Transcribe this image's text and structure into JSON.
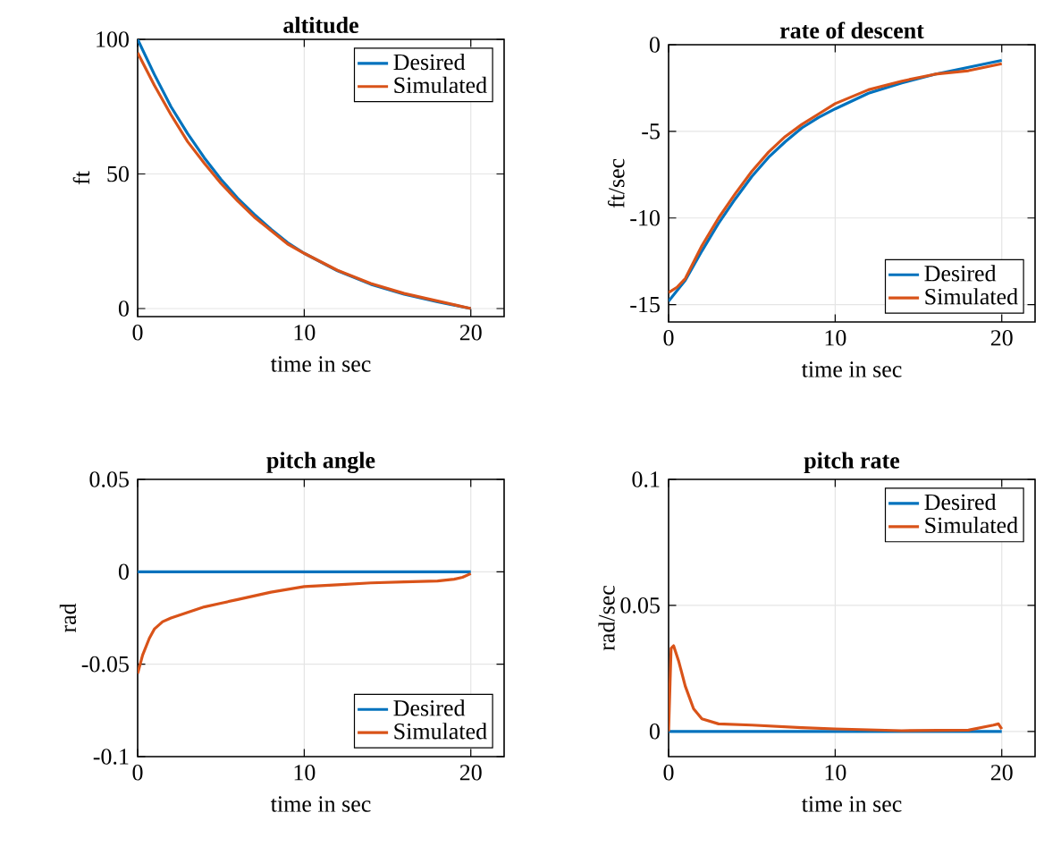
{
  "chart_data": [
    {
      "type": "line",
      "title": "altitude",
      "xlabel": "time in sec",
      "ylabel": "ft",
      "xlim": [
        0,
        22
      ],
      "xticks": [
        0,
        10,
        20
      ],
      "ylim": [
        -3,
        100
      ],
      "yticks": [
        0,
        50,
        100
      ],
      "grid": true,
      "legend": "top right",
      "series": [
        {
          "name": "Desired",
          "color": "#0072bd",
          "x": [
            0,
            1,
            2,
            3,
            4,
            5,
            6,
            7,
            8,
            9,
            10,
            12,
            14,
            16,
            18,
            20
          ],
          "values": [
            100,
            87,
            75,
            65,
            56,
            48,
            41,
            35,
            29.5,
            24.5,
            20.5,
            14,
            9,
            5.3,
            2.5,
            0
          ]
        },
        {
          "name": "Simulated",
          "color": "#d95319",
          "x": [
            0,
            1,
            2,
            3,
            4,
            5,
            6,
            7,
            8,
            9,
            10,
            12,
            14,
            16,
            18,
            20
          ],
          "values": [
            95,
            83,
            72,
            62,
            54,
            46.5,
            40,
            34,
            29,
            24,
            20.5,
            14.2,
            9.3,
            5.6,
            2.8,
            0
          ]
        }
      ]
    },
    {
      "type": "line",
      "title": "rate of descent",
      "xlabel": "time in sec",
      "ylabel": "ft/sec",
      "xlim": [
        0,
        22
      ],
      "xticks": [
        0,
        10,
        20
      ],
      "ylim": [
        -16,
        0
      ],
      "yticks": [
        -15,
        -10,
        -5,
        0
      ],
      "grid": true,
      "legend": "bottom right",
      "series": [
        {
          "name": "Desired",
          "color": "#0072bd",
          "x": [
            0,
            1,
            2,
            3,
            4,
            5,
            6,
            7,
            8,
            9,
            10,
            12,
            14,
            16,
            18,
            20
          ],
          "values": [
            -14.8,
            -13.6,
            -11.9,
            -10.3,
            -8.9,
            -7.6,
            -6.5,
            -5.6,
            -4.8,
            -4.2,
            -3.7,
            -2.8,
            -2.2,
            -1.7,
            -1.3,
            -0.9
          ]
        },
        {
          "name": "Simulated",
          "color": "#d95319",
          "x": [
            0,
            0.5,
            1,
            2,
            3,
            4,
            5,
            6,
            7,
            8,
            9,
            10,
            12,
            14,
            16,
            18,
            20
          ],
          "values": [
            -14.3,
            -14.0,
            -13.5,
            -11.6,
            -10.0,
            -8.6,
            -7.3,
            -6.2,
            -5.3,
            -4.6,
            -4.0,
            -3.4,
            -2.6,
            -2.1,
            -1.7,
            -1.5,
            -1.1
          ]
        }
      ]
    },
    {
      "type": "line",
      "title": "pitch angle",
      "xlabel": "time in sec",
      "ylabel": "rad",
      "xlim": [
        0,
        22
      ],
      "xticks": [
        0,
        10,
        20
      ],
      "ylim": [
        -0.1,
        0.05
      ],
      "yticks": [
        -0.1,
        -0.05,
        0,
        0.05
      ],
      "grid": true,
      "legend": "bottom right",
      "series": [
        {
          "name": "Desired",
          "color": "#0072bd",
          "x": [
            0,
            20
          ],
          "values": [
            0,
            0
          ]
        },
        {
          "name": "Simulated",
          "color": "#d95319",
          "x": [
            0,
            0.3,
            0.7,
            1,
            1.5,
            2,
            3,
            4,
            5,
            6,
            8,
            10,
            12,
            14,
            16,
            18,
            19,
            19.5,
            20
          ],
          "values": [
            -0.055,
            -0.045,
            -0.036,
            -0.031,
            -0.027,
            -0.025,
            -0.022,
            -0.019,
            -0.017,
            -0.015,
            -0.011,
            -0.008,
            -0.007,
            -0.006,
            -0.0055,
            -0.005,
            -0.004,
            -0.003,
            -0.001
          ]
        }
      ]
    },
    {
      "type": "line",
      "title": "pitch rate",
      "xlabel": "time in sec",
      "ylabel": "rad/sec",
      "xlim": [
        0,
        22
      ],
      "xticks": [
        0,
        10,
        20
      ],
      "ylim": [
        -0.01,
        0.1
      ],
      "yticks": [
        0,
        0.05,
        0.1
      ],
      "grid": true,
      "legend": "top right",
      "series": [
        {
          "name": "Desired",
          "color": "#0072bd",
          "x": [
            0,
            20
          ],
          "values": [
            0,
            0
          ]
        },
        {
          "name": "Simulated",
          "color": "#d95319",
          "x": [
            0,
            0.15,
            0.3,
            0.6,
            1,
            1.5,
            2,
            3,
            5,
            8,
            10,
            14,
            18,
            19.5,
            19.8,
            20
          ],
          "values": [
            0,
            0.033,
            0.034,
            0.028,
            0.018,
            0.009,
            0.005,
            0.003,
            0.0025,
            0.0015,
            0.001,
            0.0003,
            0.0005,
            0.0025,
            0.003,
            0.001
          ]
        }
      ]
    }
  ]
}
